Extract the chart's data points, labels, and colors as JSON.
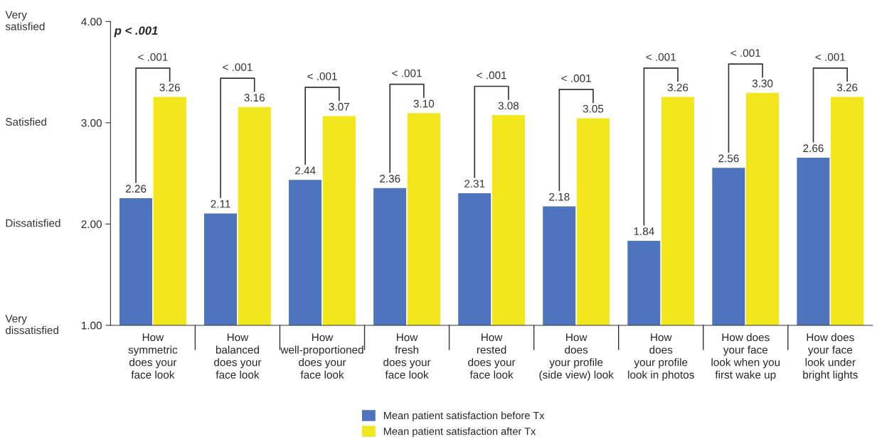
{
  "chart_data": {
    "type": "bar",
    "categories": [
      "How\nsymmetric\ndoes your\nface look",
      "How\nbalanced\ndoes your\nface look",
      "How\nwell-proportioned\ndoes your\nface look",
      "How\nfresh\ndoes your\nface look",
      "How\nrested\ndoes your\nface look",
      "How\ndoes\nyour profile\n(side view) look",
      "How\ndoes\nyour profile\nlook in photos",
      "How does\nyour face\nlook when you\nfirst wake up",
      "How does\nyour face\nlook under\nbright lights"
    ],
    "series": [
      {
        "name": "Mean patient satisfaction before Tx",
        "color": "#4f74be",
        "values": [
          2.26,
          2.11,
          2.44,
          2.36,
          2.31,
          2.18,
          1.84,
          2.56,
          2.66
        ],
        "value_labels": [
          "2.26",
          "2.11",
          "2.44",
          "2.36",
          "2.31",
          "2.18",
          "1.84",
          "2.56",
          "2.66"
        ]
      },
      {
        "name": "Mean patient satisfaction after Tx",
        "color": "#f2e61c",
        "values": [
          3.26,
          3.16,
          3.07,
          3.1,
          3.08,
          3.05,
          3.26,
          3.3,
          3.26
        ],
        "value_labels": [
          "3.26",
          "3.16",
          "3.07",
          "3.10",
          "3.08",
          "3.05",
          "3.26",
          "3.30",
          "3.26"
        ]
      }
    ],
    "ylim": [
      1,
      4
    ],
    "yticks": [
      {
        "value": 1,
        "label": "1.00"
      },
      {
        "value": 2,
        "label": "2.00"
      },
      {
        "value": 3,
        "label": "3.00"
      },
      {
        "value": 4,
        "label": "4.00"
      }
    ],
    "annotations": [
      "Very\ndissatisfied",
      "Dissatisfied",
      "Satisfied",
      "Very\nsatisfied",
      "p < .001",
      "< .001",
      "< .001",
      "< .001",
      "< .001",
      "< .001",
      "< .001",
      "< .001",
      "< .001",
      "< .001"
    ],
    "grid": false,
    "legend": "bottom"
  }
}
